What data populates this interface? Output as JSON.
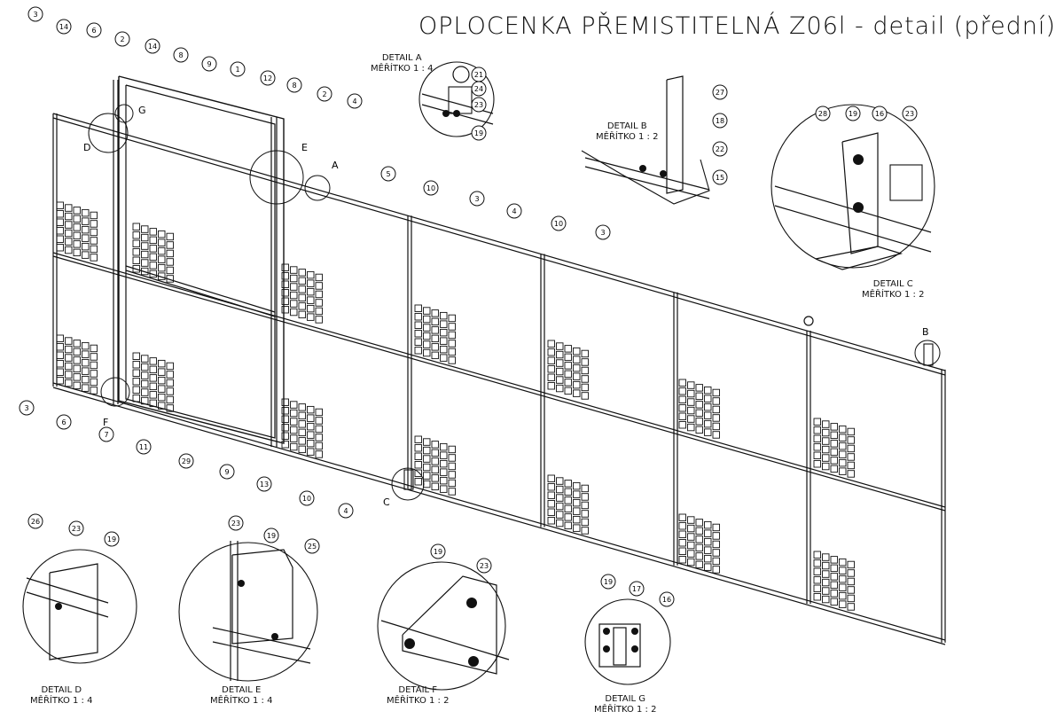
{
  "title": "OPLOCENKA PŘEMISTITELNÁ Z06l - detail (přední)",
  "details": {
    "A": {
      "name": "DETAIL A",
      "scale": "MĚŘÍTKO 1 : 4"
    },
    "B": {
      "name": "DETAIL B",
      "scale": "MĚŘÍTKO 1 : 2"
    },
    "C": {
      "name": "DETAIL C",
      "scale": "MĚŘÍTKO 1 : 2"
    },
    "D": {
      "name": "DETAIL D",
      "scale": "MĚŘÍTKO 1 : 4"
    },
    "E": {
      "name": "DETAIL E",
      "scale": "MĚŘÍTKO 1 : 4"
    },
    "F": {
      "name": "DETAIL F",
      "scale": "MĚŘÍTKO 1 : 2"
    },
    "G": {
      "name": "DETAIL G",
      "scale": "MĚŘÍTKO 1 : 2"
    }
  },
  "detail_marks": [
    "A",
    "B",
    "C",
    "D",
    "E",
    "F",
    "G"
  ],
  "balloons": [
    "1",
    "2",
    "3",
    "4",
    "5",
    "6",
    "7",
    "8",
    "9",
    "10",
    "11",
    "12",
    "13",
    "14",
    "15",
    "16",
    "17",
    "18",
    "19",
    "21",
    "22",
    "23",
    "24",
    "25",
    "26",
    "27",
    "28",
    "29"
  ]
}
